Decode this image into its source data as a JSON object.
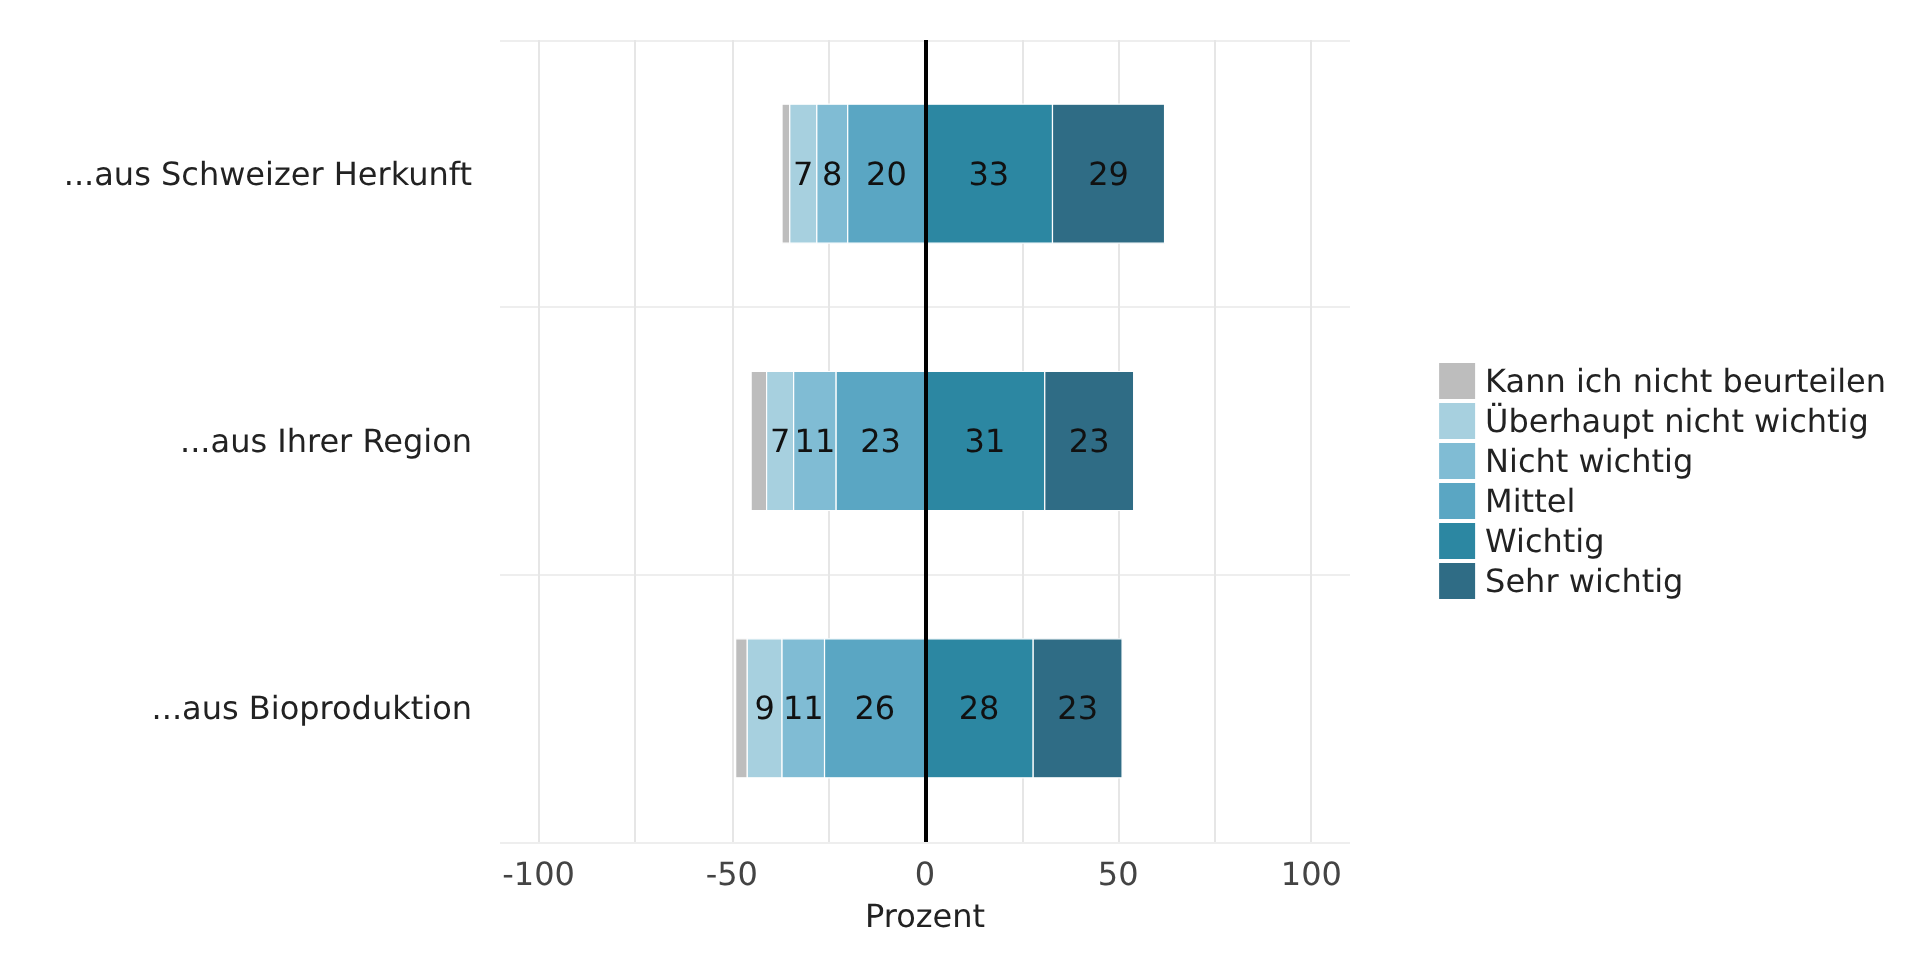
{
  "chart_data": {
    "type": "bar",
    "orientation": "horizontal",
    "xlabel": "Prozent",
    "categories": [
      "...aus Schweizer Herkunft",
      "...aus Ihrer Region",
      "...aus Bioproduktion"
    ],
    "series": [
      {
        "name": "Kann ich nicht beurteilen",
        "color": "#bdbdbd",
        "values": [
          2,
          4,
          3
        ],
        "base": [
          -37,
          -45,
          -49
        ]
      },
      {
        "name": "Überhaupt nicht wichtig",
        "color": "#a7d0df",
        "values": [
          7,
          7,
          9
        ],
        "base": [
          -35,
          -41,
          -46
        ],
        "data_labels": true
      },
      {
        "name": "Nicht wichtig",
        "color": "#80bcd4",
        "values": [
          8,
          11,
          11
        ],
        "base": [
          -28,
          -34,
          -37
        ],
        "data_labels": true
      },
      {
        "name": "Mittel",
        "color": "#5aa6c3",
        "values": [
          20,
          23,
          26
        ],
        "base": [
          -20,
          -23,
          -26
        ],
        "data_labels": true
      },
      {
        "name": "Wichtig",
        "color": "#2c87a2",
        "values": [
          33,
          31,
          28
        ],
        "base": [
          0,
          0,
          0
        ],
        "data_labels": true
      },
      {
        "name": "Sehr wichtig",
        "color": "#2f6c85",
        "values": [
          29,
          23,
          23
        ],
        "base": [
          33,
          31,
          28
        ],
        "data_labels": true
      }
    ],
    "xlim": [
      -110,
      110
    ],
    "xticks": [
      -100,
      {
        "value": -75,
        "label": null
      },
      -50,
      {
        "value": -25,
        "label": null
      },
      0,
      {
        "value": 25,
        "label": null
      },
      50,
      {
        "value": 75,
        "label": null
      },
      100
    ],
    "ref_lines": [
      {
        "axis": "x",
        "value": 0,
        "color": "#000000"
      }
    ],
    "grid": true,
    "legend": "right"
  }
}
